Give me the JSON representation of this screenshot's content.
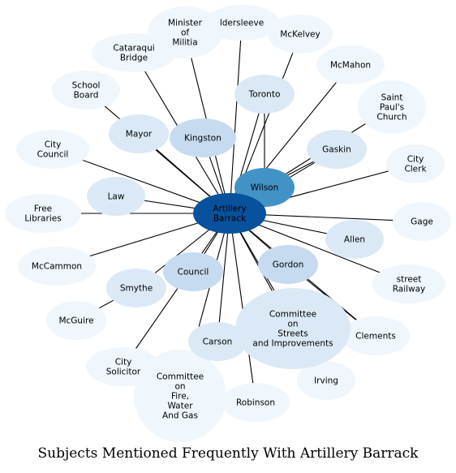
{
  "title": "Subjects Mentioned Frequently With Artillery Barrack",
  "colors": {
    "center": "#08519c",
    "tier1": "#4292c6",
    "tier2": "#c6dbef",
    "tier3": "#dbe9f6",
    "tier4": "#eff6fc"
  },
  "center": {
    "id": "artillery-barrack",
    "label": "Artillery Barrack"
  },
  "nodes": [
    {
      "id": "minister-of-militia",
      "label": "Minister of Militia",
      "tier": "tier4"
    },
    {
      "id": "caldersleeve",
      "label": "ldersleeve",
      "tier": "tier4"
    },
    {
      "id": "mckelvey",
      "label": "McKelvey",
      "tier": "tier4"
    },
    {
      "id": "cataraqui-bridge",
      "label": "Cataraqui Bridge",
      "tier": "tier4"
    },
    {
      "id": "mcmahon",
      "label": "McMahon",
      "tier": "tier4"
    },
    {
      "id": "school-board",
      "label": "School Board",
      "tier": "tier4"
    },
    {
      "id": "toronto",
      "label": "Toronto",
      "tier": "tier3"
    },
    {
      "id": "saint-pauls-church",
      "label": "Saint Paul's Church",
      "tier": "tier4"
    },
    {
      "id": "mayor",
      "label": "Mayor",
      "tier": "tier3"
    },
    {
      "id": "kingston",
      "label": "Kingston",
      "tier": "tier2"
    },
    {
      "id": "city-council",
      "label": "City Council",
      "tier": "tier4"
    },
    {
      "id": "gaskin",
      "label": "Gaskin",
      "tier": "tier3"
    },
    {
      "id": "city-clerk",
      "label": "City Clerk",
      "tier": "tier4"
    },
    {
      "id": "wilson",
      "label": "Wilson",
      "tier": "tier1"
    },
    {
      "id": "law",
      "label": "Law",
      "tier": "tier3"
    },
    {
      "id": "free-libraries",
      "label": "Free Libraries",
      "tier": "tier4"
    },
    {
      "id": "gage",
      "label": "Gage",
      "tier": "tier4"
    },
    {
      "id": "allen",
      "label": "Allen",
      "tier": "tier3"
    },
    {
      "id": "mccammon",
      "label": "McCammon",
      "tier": "tier4"
    },
    {
      "id": "council",
      "label": "Council",
      "tier": "tier2"
    },
    {
      "id": "gordon",
      "label": "Gordon",
      "tier": "tier2"
    },
    {
      "id": "street-railway",
      "label": "street Railway",
      "tier": "tier4"
    },
    {
      "id": "smythe",
      "label": "Smythe",
      "tier": "tier3"
    },
    {
      "id": "committee-streets",
      "label": "Committee on Streets and Improvements",
      "tier": "tier3"
    },
    {
      "id": "mcguire",
      "label": "McGuire",
      "tier": "tier4"
    },
    {
      "id": "clements",
      "label": "Clements",
      "tier": "tier4"
    },
    {
      "id": "carson",
      "label": "Carson",
      "tier": "tier3"
    },
    {
      "id": "city-solicitor",
      "label": "City Solicitor",
      "tier": "tier4"
    },
    {
      "id": "committee-fire",
      "label": "Committee on Fire, Water And Gas",
      "tier": "tier4"
    },
    {
      "id": "irving",
      "label": "Irving",
      "tier": "tier4"
    },
    {
      "id": "robinson",
      "label": "Robinson",
      "tier": "tier4"
    }
  ],
  "edges": [
    [
      "artillery-barrack",
      "minister-of-militia"
    ],
    [
      "artillery-barrack",
      "caldersleeve"
    ],
    [
      "artillery-barrack",
      "mckelvey"
    ],
    [
      "artillery-barrack",
      "cataraqui-bridge"
    ],
    [
      "artillery-barrack",
      "mcmahon"
    ],
    [
      "artillery-barrack",
      "school-board"
    ],
    [
      "artillery-barrack",
      "toronto"
    ],
    [
      "artillery-barrack",
      "mayor"
    ],
    [
      "artillery-barrack",
      "kingston"
    ],
    [
      "artillery-barrack",
      "city-council"
    ],
    [
      "artillery-barrack",
      "gaskin"
    ],
    [
      "artillery-barrack",
      "city-clerk"
    ],
    [
      "artillery-barrack",
      "wilson"
    ],
    [
      "artillery-barrack",
      "law"
    ],
    [
      "artillery-barrack",
      "free-libraries"
    ],
    [
      "artillery-barrack",
      "gage"
    ],
    [
      "artillery-barrack",
      "allen"
    ],
    [
      "artillery-barrack",
      "mccammon"
    ],
    [
      "artillery-barrack",
      "council"
    ],
    [
      "artillery-barrack",
      "gordon"
    ],
    [
      "artillery-barrack",
      "street-railway"
    ],
    [
      "artillery-barrack",
      "smythe"
    ],
    [
      "artillery-barrack",
      "committee-streets"
    ],
    [
      "artillery-barrack",
      "clements"
    ],
    [
      "artillery-barrack",
      "carson"
    ],
    [
      "artillery-barrack",
      "city-solicitor"
    ],
    [
      "artillery-barrack",
      "committee-fire"
    ],
    [
      "artillery-barrack",
      "irving"
    ],
    [
      "artillery-barrack",
      "robinson"
    ],
    [
      "wilson",
      "toronto"
    ],
    [
      "wilson",
      "gaskin"
    ],
    [
      "wilson",
      "saint-pauls-church"
    ],
    [
      "smythe",
      "mcguire"
    ],
    [
      "gordon",
      "clements"
    ]
  ]
}
